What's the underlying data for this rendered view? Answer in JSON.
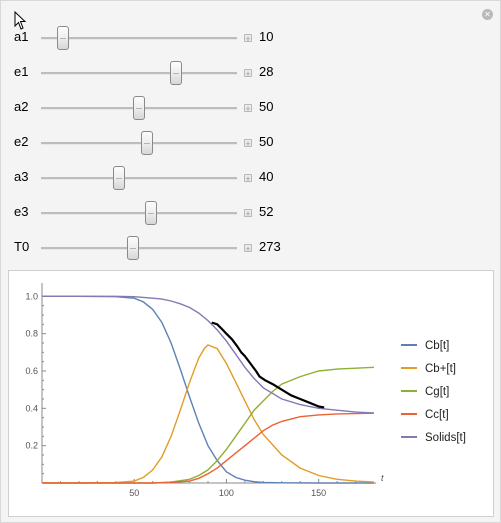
{
  "sliders": [
    {
      "label": "a1",
      "value": "10",
      "min": 0,
      "max": 100,
      "position": 0.11
    },
    {
      "label": "e1",
      "value": "28",
      "min": 0,
      "max": 40,
      "position": 0.69
    },
    {
      "label": "a2",
      "value": "50",
      "min": 0,
      "max": 100,
      "position": 0.5
    },
    {
      "label": "e2",
      "value": "50",
      "min": 0,
      "max": 100,
      "position": 0.54
    },
    {
      "label": "a3",
      "value": "40",
      "min": 0,
      "max": 100,
      "position": 0.4
    },
    {
      "label": "e3",
      "value": "52",
      "min": 0,
      "max": 100,
      "position": 0.56
    },
    {
      "label": "T0",
      "value": "273",
      "min": 0,
      "max": 600,
      "position": 0.47
    }
  ],
  "icons": {
    "close": "close-icon",
    "increment": "plus-icon",
    "cursor": "mouse-pointer-icon"
  },
  "chart_data": {
    "type": "line",
    "xlabel": "t",
    "ylabel": "",
    "xlim": [
      0,
      180
    ],
    "ylim": [
      0,
      1.05
    ],
    "xticks": [
      50,
      100,
      150
    ],
    "yticks": [
      "0.2",
      "0.4",
      "0.6",
      "0.8",
      "1.0"
    ],
    "legend_position": "right",
    "series": [
      {
        "name": "Cb[t]",
        "color": "#5e81b5",
        "x": [
          0,
          20,
          40,
          50,
          55,
          60,
          65,
          70,
          75,
          80,
          85,
          90,
          95,
          100,
          105,
          110,
          115,
          120,
          130,
          150,
          180
        ],
        "y": [
          1.0,
          1.0,
          0.998,
          0.99,
          0.97,
          0.93,
          0.86,
          0.75,
          0.61,
          0.46,
          0.32,
          0.2,
          0.12,
          0.06,
          0.03,
          0.015,
          0.007,
          0.003,
          0.001,
          0.0,
          0.0
        ]
      },
      {
        "name": "Cb+[t]",
        "color": "#e19c24",
        "x": [
          0,
          20,
          40,
          50,
          55,
          60,
          65,
          70,
          75,
          80,
          85,
          88,
          90,
          95,
          100,
          105,
          110,
          115,
          120,
          130,
          140,
          150,
          160,
          170,
          180
        ],
        "y": [
          0.0,
          0.0,
          0.002,
          0.01,
          0.03,
          0.07,
          0.14,
          0.25,
          0.39,
          0.54,
          0.67,
          0.72,
          0.74,
          0.72,
          0.64,
          0.54,
          0.44,
          0.34,
          0.26,
          0.15,
          0.08,
          0.04,
          0.02,
          0.01,
          0.005
        ]
      },
      {
        "name": "Cg[t]",
        "color": "#8fb032",
        "x": [
          0,
          60,
          70,
          80,
          85,
          90,
          95,
          100,
          105,
          110,
          115,
          120,
          125,
          130,
          140,
          150,
          160,
          170,
          180
        ],
        "y": [
          0.0,
          0.0,
          0.005,
          0.02,
          0.04,
          0.07,
          0.12,
          0.18,
          0.25,
          0.32,
          0.39,
          0.44,
          0.49,
          0.53,
          0.57,
          0.6,
          0.61,
          0.615,
          0.62
        ]
      },
      {
        "name": "Cc[t]",
        "color": "#eb6235",
        "x": [
          0,
          60,
          70,
          80,
          85,
          90,
          95,
          100,
          105,
          110,
          115,
          120,
          125,
          130,
          140,
          150,
          160,
          170,
          180
        ],
        "y": [
          0.0,
          0.0,
          0.003,
          0.01,
          0.025,
          0.05,
          0.08,
          0.12,
          0.16,
          0.2,
          0.24,
          0.28,
          0.31,
          0.33,
          0.355,
          0.365,
          0.37,
          0.372,
          0.374
        ]
      },
      {
        "name": "Solids[t]",
        "color": "#8778b3",
        "x": [
          0,
          20,
          40,
          50,
          60,
          65,
          70,
          75,
          80,
          85,
          90,
          95,
          100,
          105,
          110,
          115,
          120,
          130,
          140,
          150,
          160,
          170,
          180
        ],
        "y": [
          1.0,
          1.0,
          1.0,
          0.998,
          0.99,
          0.985,
          0.975,
          0.96,
          0.94,
          0.91,
          0.87,
          0.82,
          0.76,
          0.69,
          0.62,
          0.56,
          0.51,
          0.45,
          0.42,
          0.4,
          0.39,
          0.38,
          0.375
        ]
      }
    ],
    "annotation_stroke": {
      "color": "#000000",
      "x": [
        92,
        95,
        98,
        100,
        103,
        106,
        108,
        110,
        113,
        116,
        118,
        121,
        125,
        130,
        135,
        140,
        145,
        150,
        153
      ],
      "y": [
        0.86,
        0.85,
        0.82,
        0.8,
        0.77,
        0.73,
        0.7,
        0.68,
        0.64,
        0.6,
        0.57,
        0.55,
        0.53,
        0.5,
        0.47,
        0.45,
        0.43,
        0.41,
        0.405
      ]
    }
  }
}
